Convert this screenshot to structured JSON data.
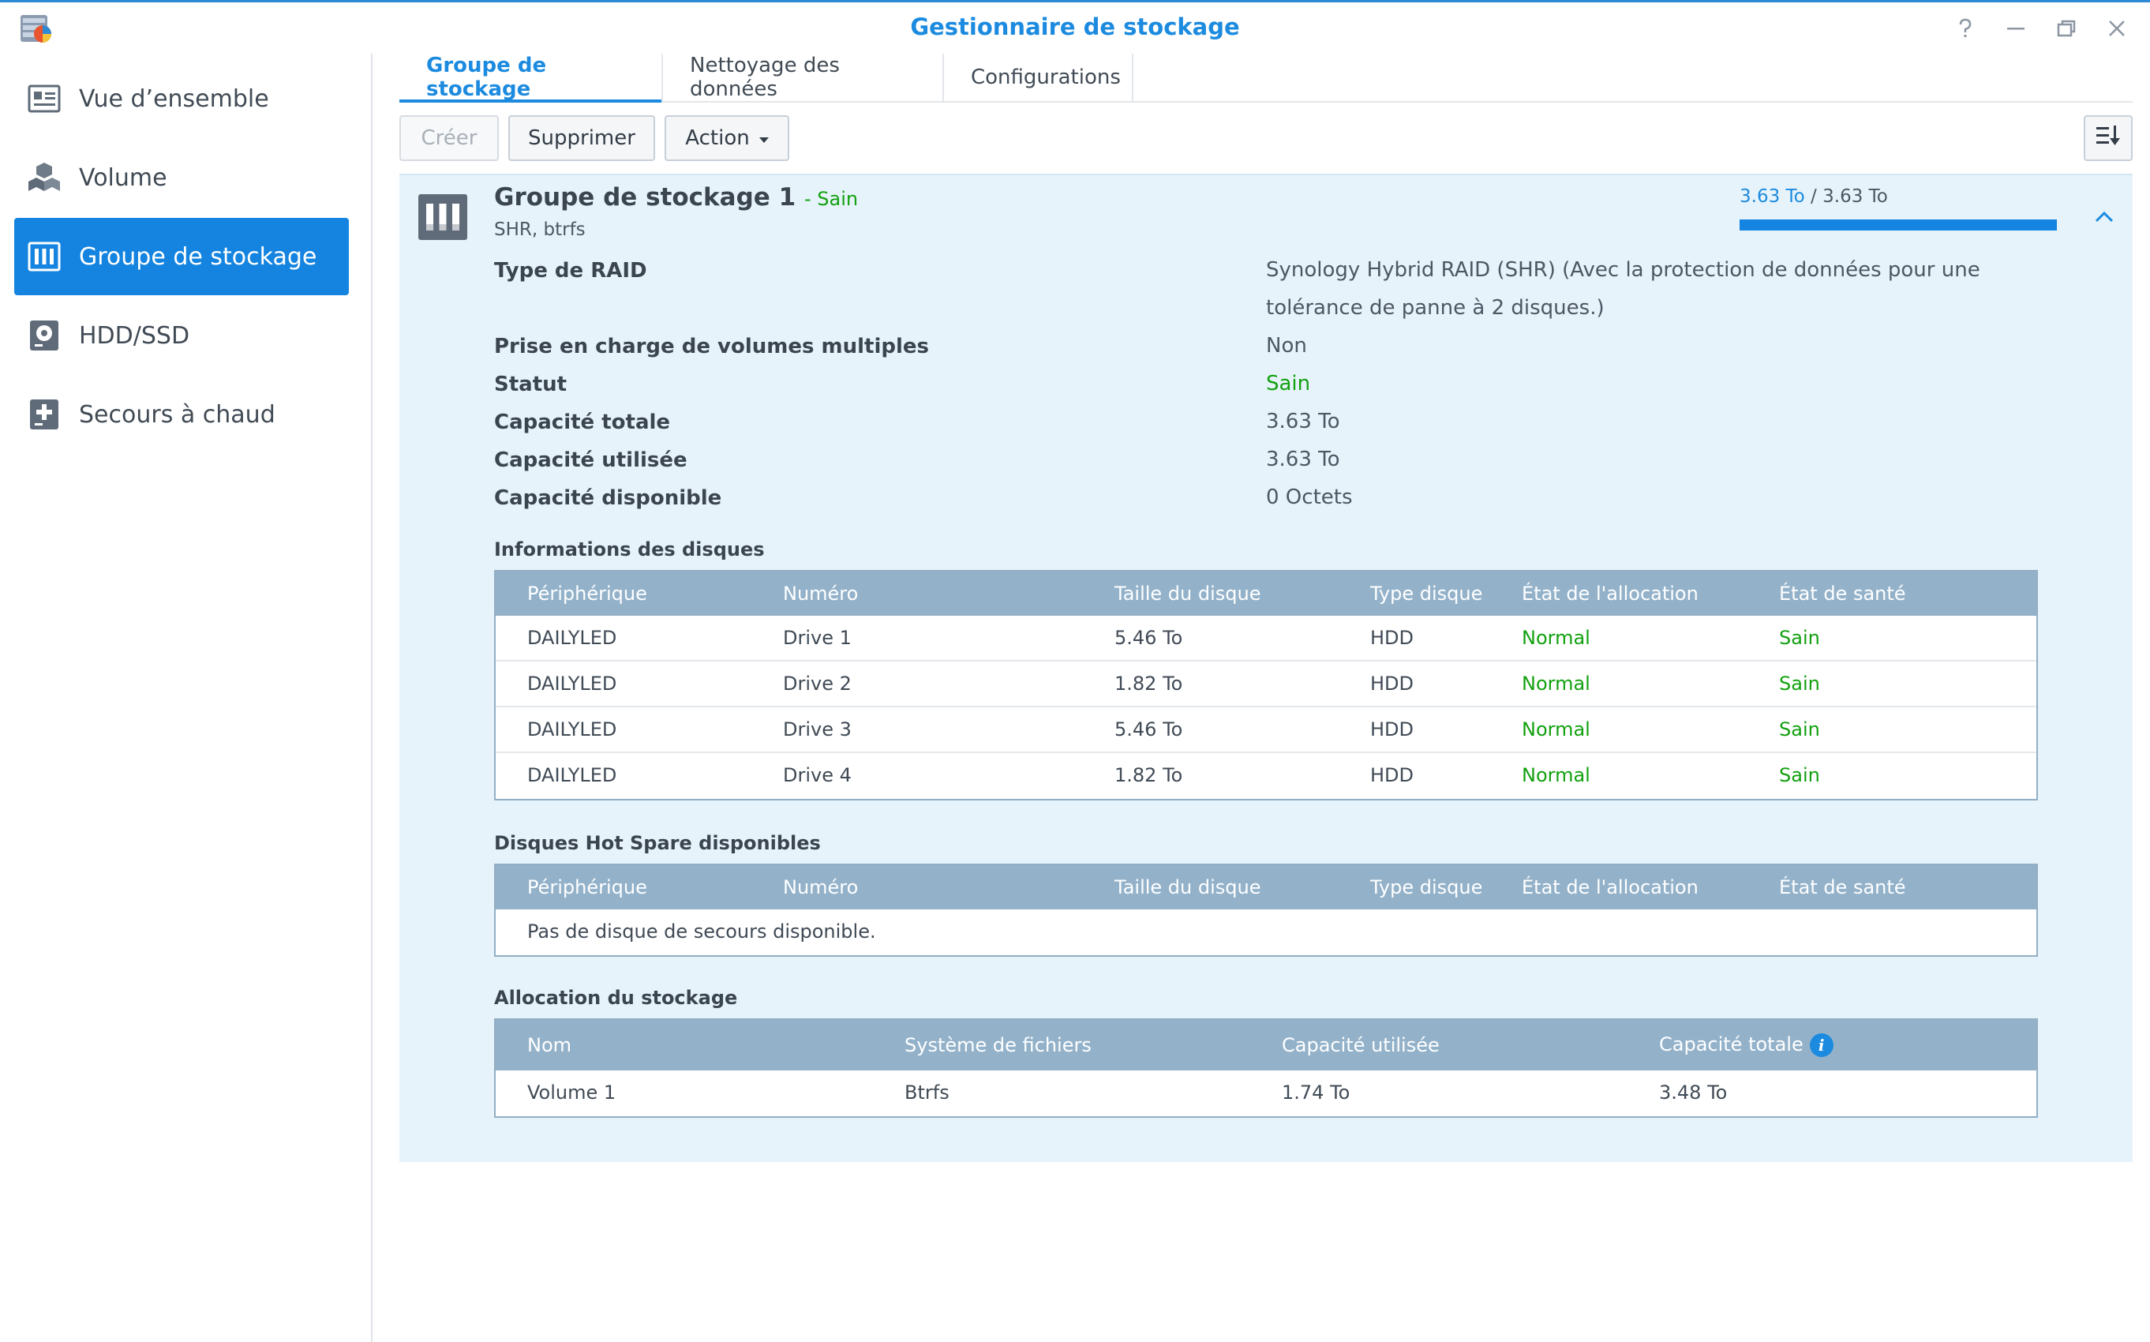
{
  "app": {
    "title": "Gestionnaire de stockage"
  },
  "sidebar": {
    "items": [
      {
        "label": "Vue d’ensemble",
        "icon": "overview-icon"
      },
      {
        "label": "Volume",
        "icon": "volume-cubes-icon"
      },
      {
        "label": "Groupe de stockage",
        "icon": "storage-pool-icon",
        "active": true
      },
      {
        "label": "HDD/SSD",
        "icon": "hdd-icon"
      },
      {
        "label": "Secours à chaud",
        "icon": "hot-spare-icon"
      }
    ]
  },
  "tabs": [
    {
      "label": "Groupe de stockage",
      "active": true
    },
    {
      "label": "Nettoyage des données"
    },
    {
      "label": "Configurations"
    }
  ],
  "toolbar": {
    "create_label": "Créer",
    "delete_label": "Supprimer",
    "action_label": "Action"
  },
  "pool": {
    "name": "Groupe de stockage 1",
    "status_inline": "- Sain",
    "subtitle": "SHR, btrfs",
    "capacity_used": "3.63 To",
    "capacity_sep": " / ",
    "capacity_total": "3.63 To",
    "capacity_fraction": 1.0,
    "properties": [
      {
        "label": "Type de RAID",
        "value": "Synology Hybrid RAID (SHR) (Avec la protection de données pour une tolérance de panne à 2 disques.)"
      },
      {
        "label": "Prise en charge de volumes multiples",
        "value": "Non"
      },
      {
        "label": "Statut",
        "value": "Sain"
      },
      {
        "label": "Capacité totale",
        "value": "3.63 To"
      },
      {
        "label": "Capacité utilisée",
        "value": "3.63 To"
      },
      {
        "label": "Capacité disponible",
        "value": "0 Octets"
      }
    ]
  },
  "disks": {
    "title": "Informations des disques",
    "columns": [
      "Périphérique",
      "Numéro",
      "Taille du disque",
      "Type disque",
      "État de l'allocation",
      "État de santé"
    ],
    "rows": [
      [
        "DAILYLED",
        "Drive 1",
        "5.46 To",
        "HDD",
        "Normal",
        "Sain"
      ],
      [
        "DAILYLED",
        "Drive 2",
        "1.82 To",
        "HDD",
        "Normal",
        "Sain"
      ],
      [
        "DAILYLED",
        "Drive 3",
        "5.46 To",
        "HDD",
        "Normal",
        "Sain"
      ],
      [
        "DAILYLED",
        "Drive 4",
        "1.82 To",
        "HDD",
        "Normal",
        "Sain"
      ]
    ]
  },
  "hotspare": {
    "title": "Disques Hot Spare disponibles",
    "columns": [
      "Périphérique",
      "Numéro",
      "Taille du disque",
      "Type disque",
      "État de l'allocation",
      "État de santé"
    ],
    "empty_message": "Pas de disque de secours disponible."
  },
  "allocation": {
    "title": "Allocation du stockage",
    "columns": [
      "Nom",
      "Système de fichiers",
      "Capacité utilisée",
      "Capacité totale"
    ],
    "rows": [
      [
        "Volume 1",
        "Btrfs",
        "1.74 To",
        "3.48 To"
      ]
    ]
  },
  "colors": {
    "accent": "#1c8bdf",
    "active_nav": "#1484e0",
    "healthy_green": "#12a10f",
    "panel_bg": "#e6f3fb",
    "table_header": "#93b2ca"
  }
}
